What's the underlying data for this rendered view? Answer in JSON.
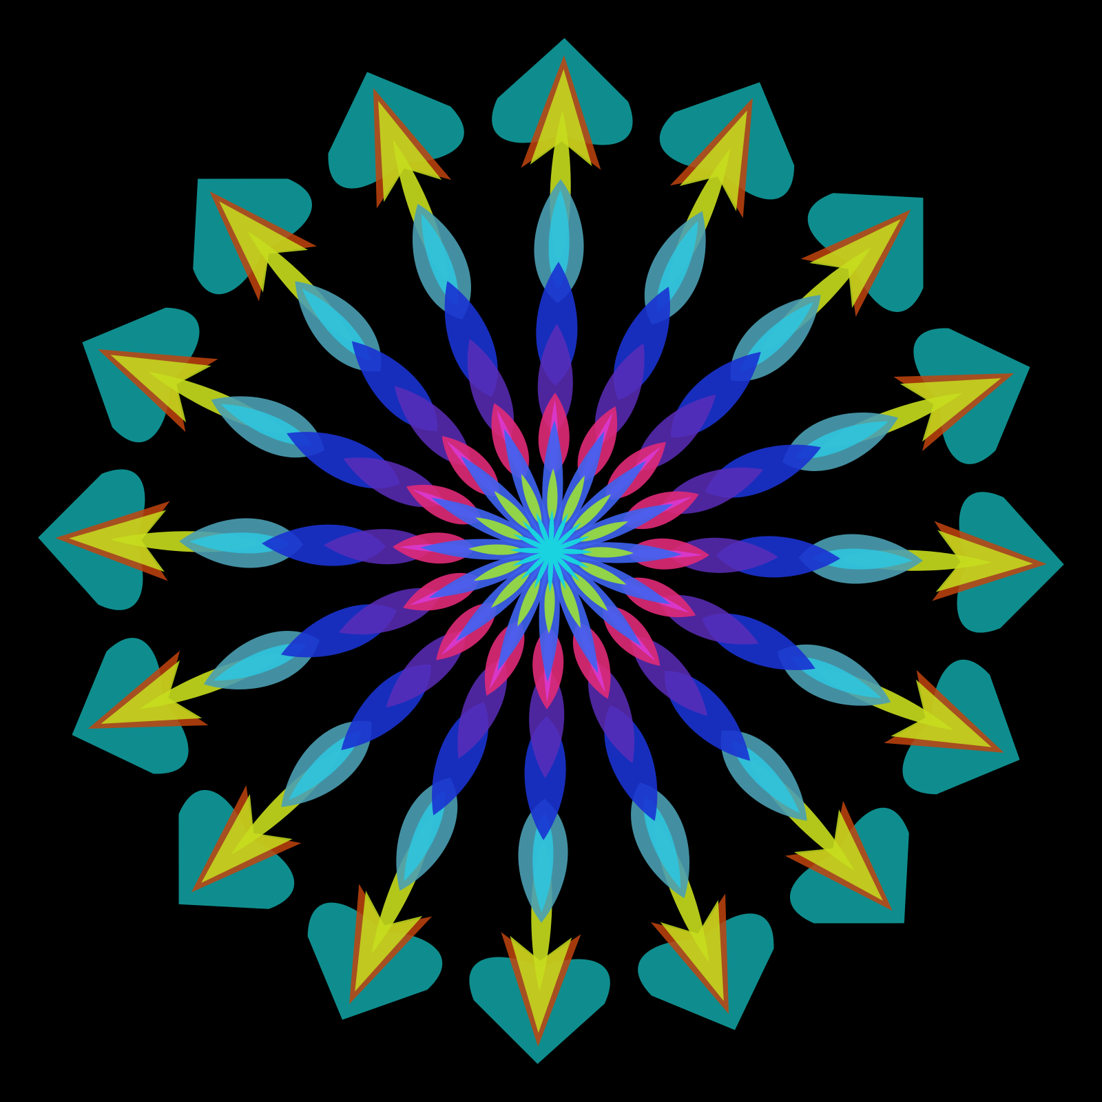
{
  "artwork": {
    "kind": "radial-mandala",
    "arm_count": 16,
    "background": "#000000",
    "palette": {
      "heart_teal": "#10999a",
      "arrow_red": "#c1440e",
      "arrow_yellow": "#c6dd1e",
      "petal_light_blue": "#4a9fb3",
      "petal_cyan": "#2ec7e0",
      "petal_blue": "#1a33d1",
      "petal_violet": "#5a2db8",
      "petal_magenta": "#e02a78",
      "petal_pink": "#d93ad6",
      "inner_blue": "#3e63f0",
      "inner_green": "#9be03a",
      "center_cyan": "#19d3e0"
    },
    "layers": [
      {
        "name": "heart",
        "icon": "heart-shape"
      },
      {
        "name": "arrow-head",
        "icon": "arrow-shape"
      },
      {
        "name": "outer-petal",
        "icon": "leaf-shape"
      },
      {
        "name": "mid-petal",
        "icon": "leaf-shape"
      },
      {
        "name": "inner-petal",
        "icon": "leaf-shape"
      },
      {
        "name": "core-spike",
        "icon": "spike-shape"
      }
    ]
  }
}
